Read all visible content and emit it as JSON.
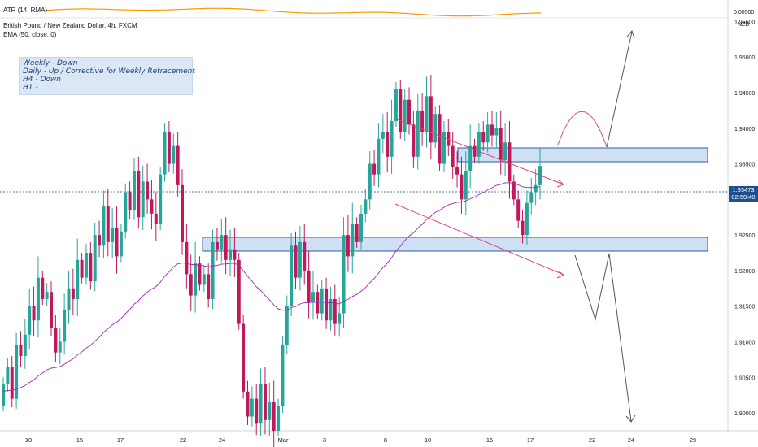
{
  "header": {
    "symbol_title": "British Pound / New Zealand Dollar, 4h, FXCM",
    "ema_label": "EMA (50, close, 0)",
    "atr_label": "ATR (14, RMA)",
    "atr_value": "0.00500",
    "currency": "NZD"
  },
  "note": {
    "lines": [
      "Weekly - Down",
      "Daily   - Up / Corrective for Weekly Retracement",
      "H4      - Down",
      "H1      -"
    ]
  },
  "price_badge": {
    "price": "1.93473",
    "countdown": "02:50:40"
  },
  "colors": {
    "up": "#26a69a",
    "down": "#c2185b",
    "ema": "#9c27b0",
    "zone_fill": "#cfe0f5",
    "zone_border": "#2c5da8",
    "channel": "#e0457b",
    "projection": "#555555",
    "projection_arc": "#e0457b",
    "atr": "#ff9800",
    "price_line": "#1f4f8f"
  },
  "chart_data": {
    "type": "candlestick",
    "title": "British Pound / New Zealand Dollar, 4h, FXCM",
    "y_ticks": [
      1.955,
      1.95,
      1.945,
      1.94,
      1.935,
      1.93,
      1.925,
      1.92,
      1.915,
      1.91,
      1.905,
      1.9
    ],
    "y_range": [
      1.8975,
      1.9555
    ],
    "x_ticks": [
      "10",
      "15",
      "17",
      "22",
      "24",
      "Mar",
      "3",
      "8",
      "10",
      "15",
      "17",
      "22",
      "24",
      "29"
    ],
    "last_price": 1.93473,
    "ema_period": 50,
    "closes": [
      1.904,
      1.9065,
      1.902,
      1.9095,
      1.908,
      1.911,
      1.915,
      1.913,
      1.919,
      1.916,
      1.917,
      1.912,
      1.9085,
      1.91,
      1.9145,
      1.9175,
      1.916,
      1.9215,
      1.919,
      1.9225,
      1.9185,
      1.925,
      1.9235,
      1.929,
      1.924,
      1.926,
      1.922,
      1.9255,
      1.931,
      1.9285,
      1.934,
      1.9275,
      1.9325,
      1.93,
      1.928,
      1.9265,
      1.9335,
      1.9395,
      1.935,
      1.9375,
      1.932,
      1.924,
      1.9195,
      1.9165,
      1.921,
      1.918,
      1.9195,
      1.916,
      1.924,
      1.923,
      1.925,
      1.9215,
      1.923,
      1.9215,
      1.9125,
      1.903,
      1.8995,
      1.902,
      1.8985,
      1.904,
      1.899,
      1.9015,
      1.8975,
      1.901,
      1.9095,
      1.915,
      1.9235,
      1.919,
      1.924,
      1.92,
      1.9155,
      1.917,
      1.914,
      1.9175,
      1.913,
      1.916,
      1.9125,
      1.914,
      1.925,
      1.922,
      1.9265,
      1.924,
      1.928,
      1.93,
      1.935,
      1.9335,
      1.9385,
      1.9395,
      1.936,
      1.941,
      1.9455,
      1.9395,
      1.944,
      1.9405,
      1.936,
      1.9425,
      1.9395,
      1.9445,
      1.938,
      1.942,
      1.935,
      1.9395,
      1.9375,
      1.9345,
      1.9335,
      1.93,
      1.934,
      1.9375,
      1.936,
      1.9395,
      1.938,
      1.9405,
      1.939,
      1.94,
      1.9355,
      1.938,
      1.9325,
      1.93,
      1.927,
      1.925,
      1.9295,
      1.931,
      1.932,
      1.9347
    ]
  }
}
